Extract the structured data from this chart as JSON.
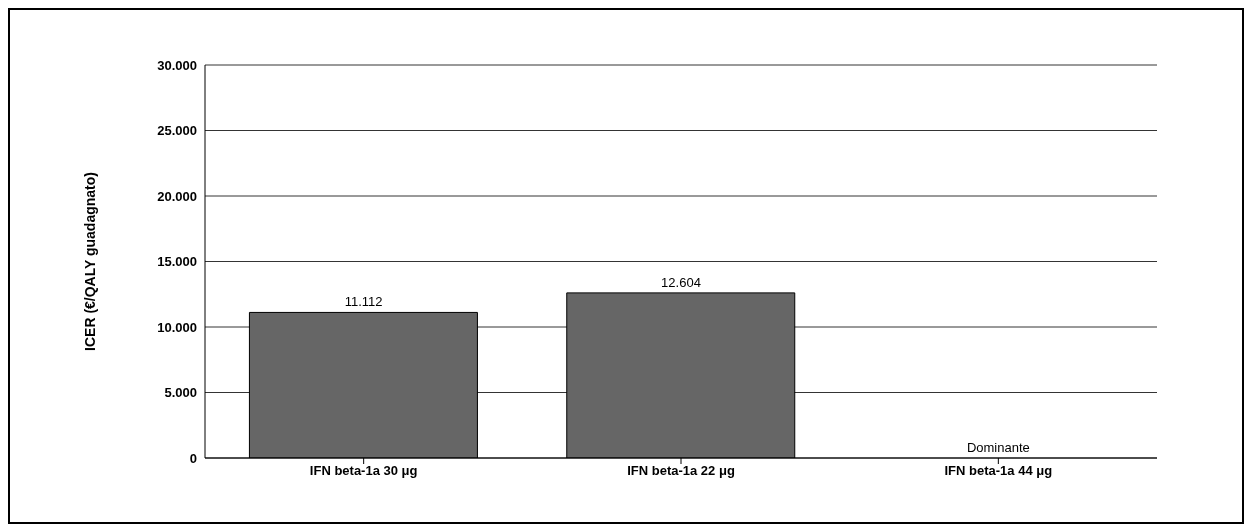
{
  "chart_data": {
    "type": "bar",
    "ylabel": "ICER (€/QALY guadagnato)",
    "categories": [
      "IFN beta-1a 30 μg",
      "IFN beta-1a 22 μg",
      "IFN beta-1a 44 μg"
    ],
    "values": [
      11112,
      12604,
      null
    ],
    "value_labels": [
      "11.112",
      "12.604",
      "Dominante"
    ],
    "color": "#666666",
    "ylim": [
      0,
      30000
    ],
    "yticks": [
      {
        "value": 0,
        "label": "0"
      },
      {
        "value": 5000,
        "label": "5.000"
      },
      {
        "value": 10000,
        "label": "10.000"
      },
      {
        "value": 15000,
        "label": "15.000"
      },
      {
        "value": 20000,
        "label": "20.000"
      },
      {
        "value": 25000,
        "label": "25.000"
      },
      {
        "value": 30000,
        "label": "30.000"
      }
    ],
    "grid": "y",
    "legend": false
  }
}
